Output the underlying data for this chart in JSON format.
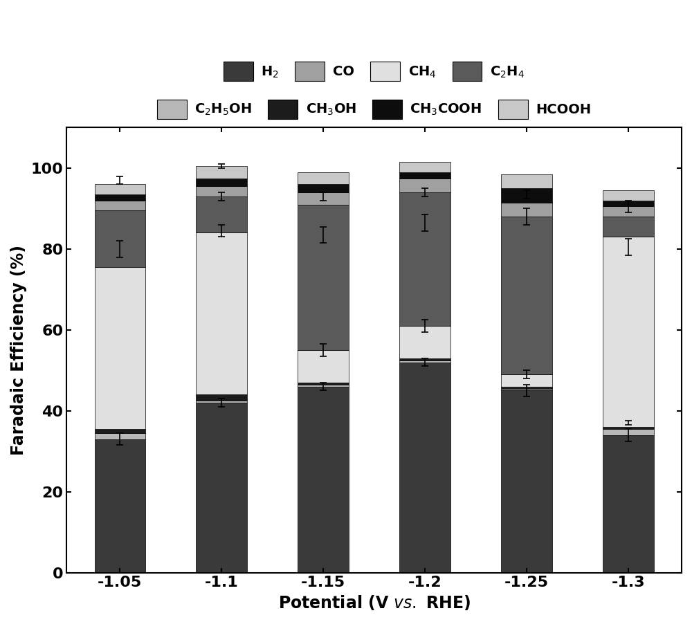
{
  "categories": [
    "-1.05",
    "-1.1",
    "-1.15",
    "-1.2",
    "-1.25",
    "-1.3"
  ],
  "series": [
    {
      "name": "H₂",
      "color": "#3a3a3a",
      "values": [
        33.0,
        42.0,
        46.0,
        52.0,
        45.0,
        34.0
      ],
      "errors": [
        1.5,
        1.0,
        1.0,
        1.0,
        1.5,
        1.5
      ]
    },
    {
      "name": "C₂H₅OH",
      "color": "#b8b8b8",
      "values": [
        1.5,
        0.5,
        0.5,
        0.5,
        0.5,
        1.5
      ],
      "errors": [
        0.3,
        0.2,
        0.2,
        0.2,
        0.2,
        0.3
      ]
    },
    {
      "name": "CH₃OH",
      "color": "#1c1c1c",
      "values": [
        1.0,
        1.5,
        0.5,
        0.5,
        0.5,
        0.5
      ],
      "errors": [
        0.2,
        0.3,
        0.1,
        0.1,
        0.1,
        0.1
      ]
    },
    {
      "name": "CH₄",
      "color": "#e0e0e0",
      "values": [
        40.0,
        40.0,
        8.0,
        8.0,
        3.0,
        47.0
      ],
      "errors": [
        2.0,
        2.0,
        1.5,
        1.5,
        1.0,
        2.5
      ]
    },
    {
      "name": "C₂H₄",
      "color": "#5a5a5a",
      "values": [
        14.0,
        9.0,
        36.0,
        33.0,
        39.0,
        5.0
      ],
      "errors": [
        1.0,
        1.0,
        2.0,
        2.0,
        2.0,
        0.8
      ]
    },
    {
      "name": "CO",
      "color": "#a0a0a0",
      "values": [
        2.5,
        2.5,
        3.0,
        3.5,
        3.5,
        2.5
      ],
      "errors": [
        0.3,
        0.3,
        0.5,
        0.5,
        0.5,
        0.3
      ]
    },
    {
      "name": "CH₃COOH",
      "color": "#0d0d0d",
      "values": [
        1.5,
        2.0,
        2.0,
        1.5,
        3.5,
        1.5
      ],
      "errors": [
        0.3,
        0.3,
        0.3,
        0.3,
        0.5,
        0.2
      ]
    },
    {
      "name": "HCOOH",
      "color": "#c8c8c8",
      "values": [
        2.5,
        3.0,
        3.0,
        2.5,
        3.5,
        2.5
      ],
      "errors": [
        0.4,
        0.5,
        0.5,
        0.4,
        0.5,
        0.4
      ]
    }
  ],
  "errorbars": [
    {
      "xi": 0,
      "positions": [
        33.0,
        80.0,
        97.0
      ],
      "errors": [
        1.5,
        2.0,
        1.0
      ]
    },
    {
      "xi": 1,
      "positions": [
        42.0,
        84.5,
        93.0,
        100.5
      ],
      "errors": [
        1.0,
        1.5,
        1.0,
        0.5
      ]
    },
    {
      "xi": 2,
      "positions": [
        46.0,
        55.0,
        83.5,
        93.0
      ],
      "errors": [
        1.0,
        1.5,
        2.0,
        1.0
      ]
    },
    {
      "xi": 3,
      "positions": [
        52.0,
        61.0,
        86.5,
        94.0
      ],
      "errors": [
        1.0,
        1.5,
        2.0,
        1.0
      ]
    },
    {
      "xi": 4,
      "positions": [
        45.0,
        49.0,
        88.0,
        93.5
      ],
      "errors": [
        1.5,
        1.0,
        2.0,
        1.0
      ]
    },
    {
      "xi": 5,
      "positions": [
        34.0,
        37.0,
        80.5,
        90.5
      ],
      "errors": [
        1.5,
        0.5,
        2.0,
        1.5
      ]
    }
  ],
  "ylabel": "Faradaic Efficiency (%)",
  "ylim": [
    0,
    110
  ],
  "yticks": [
    0,
    20,
    40,
    60,
    80,
    100
  ],
  "bar_width": 0.5,
  "legend_row1": [
    {
      "label": "H$_2$",
      "series_idx": 0
    },
    {
      "label": "CO",
      "series_idx": 5
    },
    {
      "label": "CH$_4$",
      "series_idx": 3
    },
    {
      "label": "C$_2$H$_4$",
      "series_idx": 4
    }
  ],
  "legend_row2": [
    {
      "label": "C$_2$H$_5$OH",
      "series_idx": 1
    },
    {
      "label": "CH$_3$OH",
      "series_idx": 2
    },
    {
      "label": "CH$_3$COOH",
      "series_idx": 6
    },
    {
      "label": "HCOOH",
      "series_idx": 7
    }
  ]
}
